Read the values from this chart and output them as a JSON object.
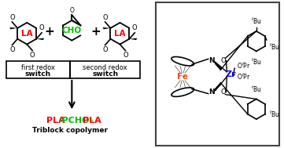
{
  "fig_width": 3.61,
  "fig_height": 1.89,
  "dpi": 100,
  "bg_color": "#ffffff",
  "left_panel": {
    "la_color": "#ff0000",
    "cho_color": "#00bb00",
    "la_label": "LA",
    "cho_label": "CHO",
    "box1_text_line1": "first redox",
    "box1_text_line2": "switch",
    "box2_text_line1": "second redox",
    "box2_text_line2": "switch",
    "product_line1_parts": [
      "PLA",
      "-PCHO-",
      "PLA"
    ],
    "product_line1_colors": [
      "#ff0000",
      "#00bb00",
      "#ff0000"
    ],
    "product_line2": "Triblock copolymer",
    "product_line2_color": "#000000"
  },
  "right_panel": {
    "border_color": "#444444",
    "fe_color": "#ff4400",
    "zr_color": "#0000ee",
    "fe_label": "Fe",
    "zr_label": "Zr"
  }
}
